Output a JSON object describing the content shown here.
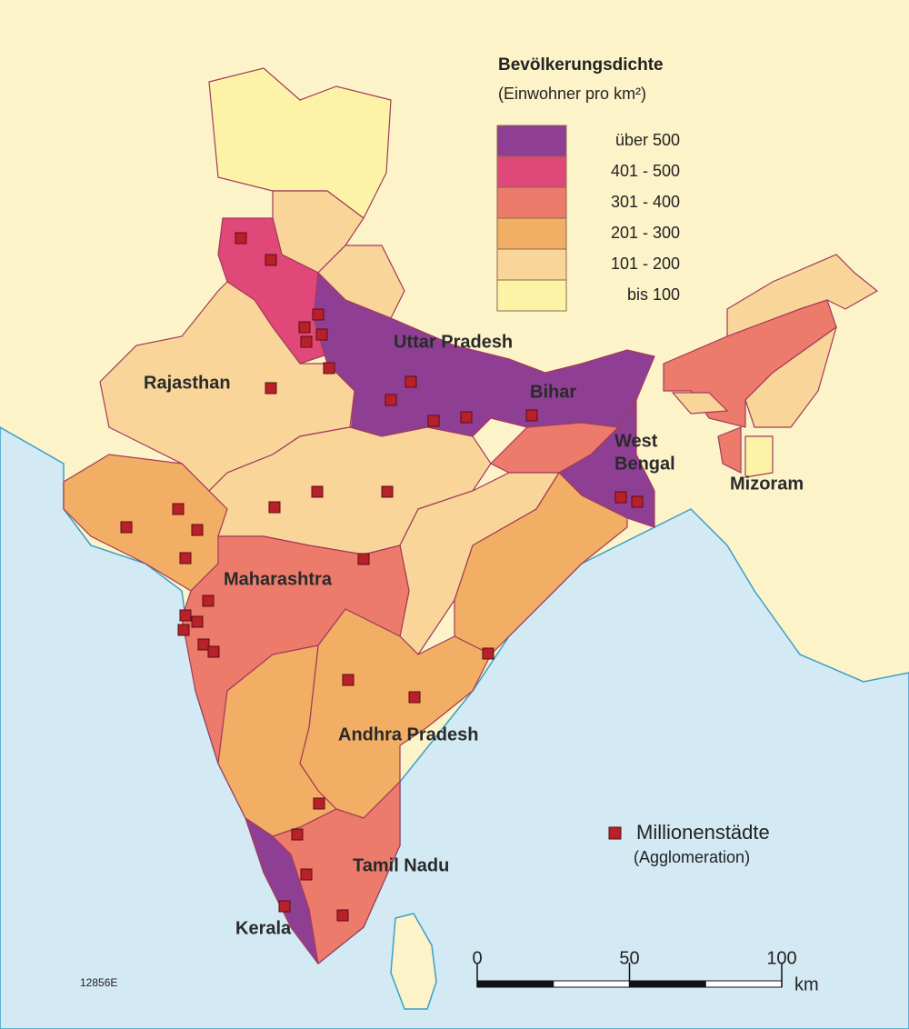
{
  "legend": {
    "title": "Bevölkerungsdichte",
    "subtitle": "(Einwohner pro km²)",
    "classes": [
      {
        "label": "über 500",
        "color": "#8e3f94"
      },
      {
        "label": "401 - 500",
        "color": "#e0487a"
      },
      {
        "label": "301 - 400",
        "color": "#ec7b6c"
      },
      {
        "label": "201 - 300",
        "color": "#f2ae64"
      },
      {
        "label": "101 - 200",
        "color": "#f9d59a"
      },
      {
        "label": "bis 100",
        "color": "#fdf3a6"
      }
    ]
  },
  "cities_legend": {
    "title": "Millionenstädte",
    "subtitle": "(Agglomeration)",
    "color": "#b8202a"
  },
  "state_labels": [
    "Uttar Pradesh",
    "Rajasthan",
    "Bihar",
    "West",
    "Bengal",
    "Mizoram",
    "Maharashtra",
    "Andhra Pradesh",
    "Tamil Nadu",
    "Kerala"
  ],
  "scale": {
    "ticks": [
      0,
      50,
      100
    ],
    "unit": "km"
  },
  "code": "12856E"
}
